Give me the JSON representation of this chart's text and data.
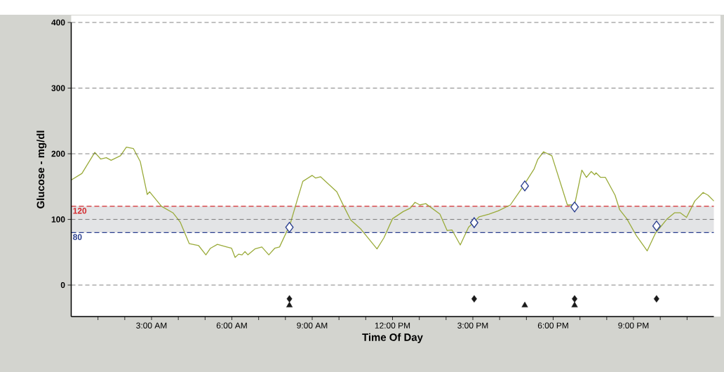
{
  "chart_data": {
    "type": "line",
    "xlabel": "Time Of Day",
    "ylabel": "Glucose - mg/dl",
    "xlim": [
      0,
      24
    ],
    "ylim": [
      -48,
      400
    ],
    "xticks": [
      {
        "value": 1,
        "label": null
      },
      {
        "value": 2,
        "label": null
      },
      {
        "value": 3,
        "label": "3:00 AM"
      },
      {
        "value": 4,
        "label": null
      },
      {
        "value": 5,
        "label": null
      },
      {
        "value": 6,
        "label": "6:00 AM"
      },
      {
        "value": 7,
        "label": null
      },
      {
        "value": 8,
        "label": null
      },
      {
        "value": 9,
        "label": "9:00 AM"
      },
      {
        "value": 10,
        "label": null
      },
      {
        "value": 11,
        "label": null
      },
      {
        "value": 12,
        "label": "12:00 PM"
      },
      {
        "value": 13,
        "label": null
      },
      {
        "value": 14,
        "label": null
      },
      {
        "value": 15,
        "label": "3:00 PM"
      },
      {
        "value": 16,
        "label": null
      },
      {
        "value": 17,
        "label": null
      },
      {
        "value": 18,
        "label": "6:00 PM"
      },
      {
        "value": 19,
        "label": null
      },
      {
        "value": 20,
        "label": null
      },
      {
        "value": 21,
        "label": "9:00 PM"
      },
      {
        "value": 22,
        "label": null
      },
      {
        "value": 23,
        "label": null
      }
    ],
    "yticks": [
      0,
      100,
      200,
      300,
      400
    ],
    "grid": "y",
    "bands": [
      {
        "axis": "y",
        "from": 80,
        "to": 120,
        "color": "#e3e4e6"
      }
    ],
    "ref_lines": [
      {
        "axis": "y",
        "value": 120,
        "label": "120",
        "color": "#d42a2e",
        "line_style": "dashed"
      },
      {
        "axis": "y",
        "value": 80,
        "label": "80",
        "color": "#2b3f8f",
        "line_style": "dashed"
      }
    ],
    "series": [
      {
        "color": "#9aab3a",
        "marker": "none",
        "x": [
          0.0,
          0.4,
          0.88,
          1.1,
          1.31,
          1.49,
          1.84,
          2.06,
          2.32,
          2.58,
          2.84,
          2.93,
          3.37,
          3.8,
          4.07,
          4.41,
          4.76,
          5.03,
          5.2,
          5.46,
          5.81,
          5.99,
          6.12,
          6.25,
          6.38,
          6.49,
          6.6,
          6.86,
          7.12,
          7.38,
          7.6,
          7.78,
          8.17,
          8.43,
          8.65,
          9.0,
          9.13,
          9.31,
          9.92,
          10.18,
          10.44,
          10.8,
          11.42,
          11.68,
          12.0,
          12.4,
          12.66,
          12.84,
          13.02,
          13.24,
          13.77,
          14.04,
          14.22,
          14.53,
          14.84,
          15.24,
          15.6,
          15.95,
          16.4,
          16.84,
          17.29,
          17.42,
          17.64,
          17.95,
          18.53,
          18.8,
          19.07,
          19.24,
          19.42,
          19.55,
          19.6,
          19.77,
          19.95,
          20.31,
          20.48,
          20.75,
          21.11,
          21.51,
          21.82,
          22.26,
          22.53,
          22.75,
          22.98,
          23.29,
          23.6,
          23.78,
          24.0
        ],
        "values": [
          160,
          170,
          202,
          192,
          194,
          190,
          197,
          210,
          208,
          188,
          138,
          142,
          120,
          110,
          96,
          63,
          60,
          46,
          56,
          62,
          58,
          56,
          42,
          47,
          46,
          51,
          46,
          55,
          58,
          46,
          56,
          58,
          92,
          128,
          158,
          167,
          163,
          165,
          142,
          120,
          99,
          86,
          55,
          72,
          101,
          112,
          117,
          126,
          122,
          124,
          108,
          83,
          84,
          61,
          88,
          104,
          108,
          113,
          122,
          148,
          177,
          191,
          203,
          197,
          122,
          122,
          175,
          164,
          173,
          168,
          171,
          164,
          164,
          137,
          115,
          101,
          75,
          52,
          79,
          101,
          110,
          110,
          103,
          128,
          141,
          137,
          128
        ]
      },
      {
        "type": "scatter",
        "color": "#2b3f8f",
        "marker": "diamond",
        "x": [
          8.15,
          15.05,
          16.94,
          18.8,
          21.86
        ],
        "values": [
          88,
          95,
          151,
          119,
          90
        ]
      },
      {
        "type": "scatter",
        "color": "#1a1a1a",
        "marker": "diamond",
        "x": [
          8.15,
          15.05,
          18.8,
          21.86
        ],
        "values": [
          -21,
          -21,
          -21,
          -21
        ]
      },
      {
        "type": "scatter",
        "color": "#1a1a1a",
        "marker": "triangle",
        "x": [
          8.15,
          16.94,
          18.8
        ],
        "values": [
          -31,
          -31,
          -31
        ]
      }
    ]
  }
}
